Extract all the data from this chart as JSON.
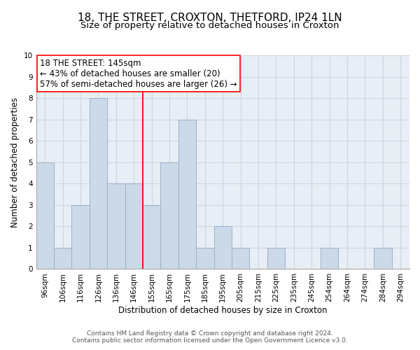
{
  "title": "18, THE STREET, CROXTON, THETFORD, IP24 1LN",
  "subtitle": "Size of property relative to detached houses in Croxton",
  "xlabel": "Distribution of detached houses by size in Croxton",
  "ylabel": "Number of detached properties",
  "footnote1": "Contains HM Land Registry data © Crown copyright and database right 2024.",
  "footnote2": "Contains public sector information licensed under the Open Government Licence v3.0.",
  "bar_labels": [
    "96sqm",
    "106sqm",
    "116sqm",
    "126sqm",
    "136sqm",
    "146sqm",
    "155sqm",
    "165sqm",
    "175sqm",
    "185sqm",
    "195sqm",
    "205sqm",
    "215sqm",
    "225sqm",
    "235sqm",
    "245sqm",
    "254sqm",
    "264sqm",
    "274sqm",
    "284sqm",
    "294sqm"
  ],
  "bar_values": [
    5,
    1,
    3,
    8,
    4,
    4,
    3,
    5,
    7,
    1,
    2,
    1,
    0,
    1,
    0,
    0,
    1,
    0,
    0,
    1,
    0
  ],
  "bar_color": "#ccd9e8",
  "bar_edge_color": "#9ab0cc",
  "grid_color": "#ccd5e0",
  "background_color": "#e8eef5",
  "reference_line_x": 5,
  "annotation_title": "18 THE STREET: 145sqm",
  "annotation_line1": "← 43% of detached houses are smaller (20)",
  "annotation_line2": "57% of semi-detached houses are larger (26) →",
  "ylim": [
    0,
    10
  ],
  "yticks": [
    0,
    1,
    2,
    3,
    4,
    5,
    6,
    7,
    8,
    9,
    10
  ],
  "title_fontsize": 11,
  "subtitle_fontsize": 9.5,
  "axis_label_fontsize": 8.5,
  "tick_fontsize": 7.5,
  "annotation_fontsize": 8.5,
  "footnote_fontsize": 6.5
}
